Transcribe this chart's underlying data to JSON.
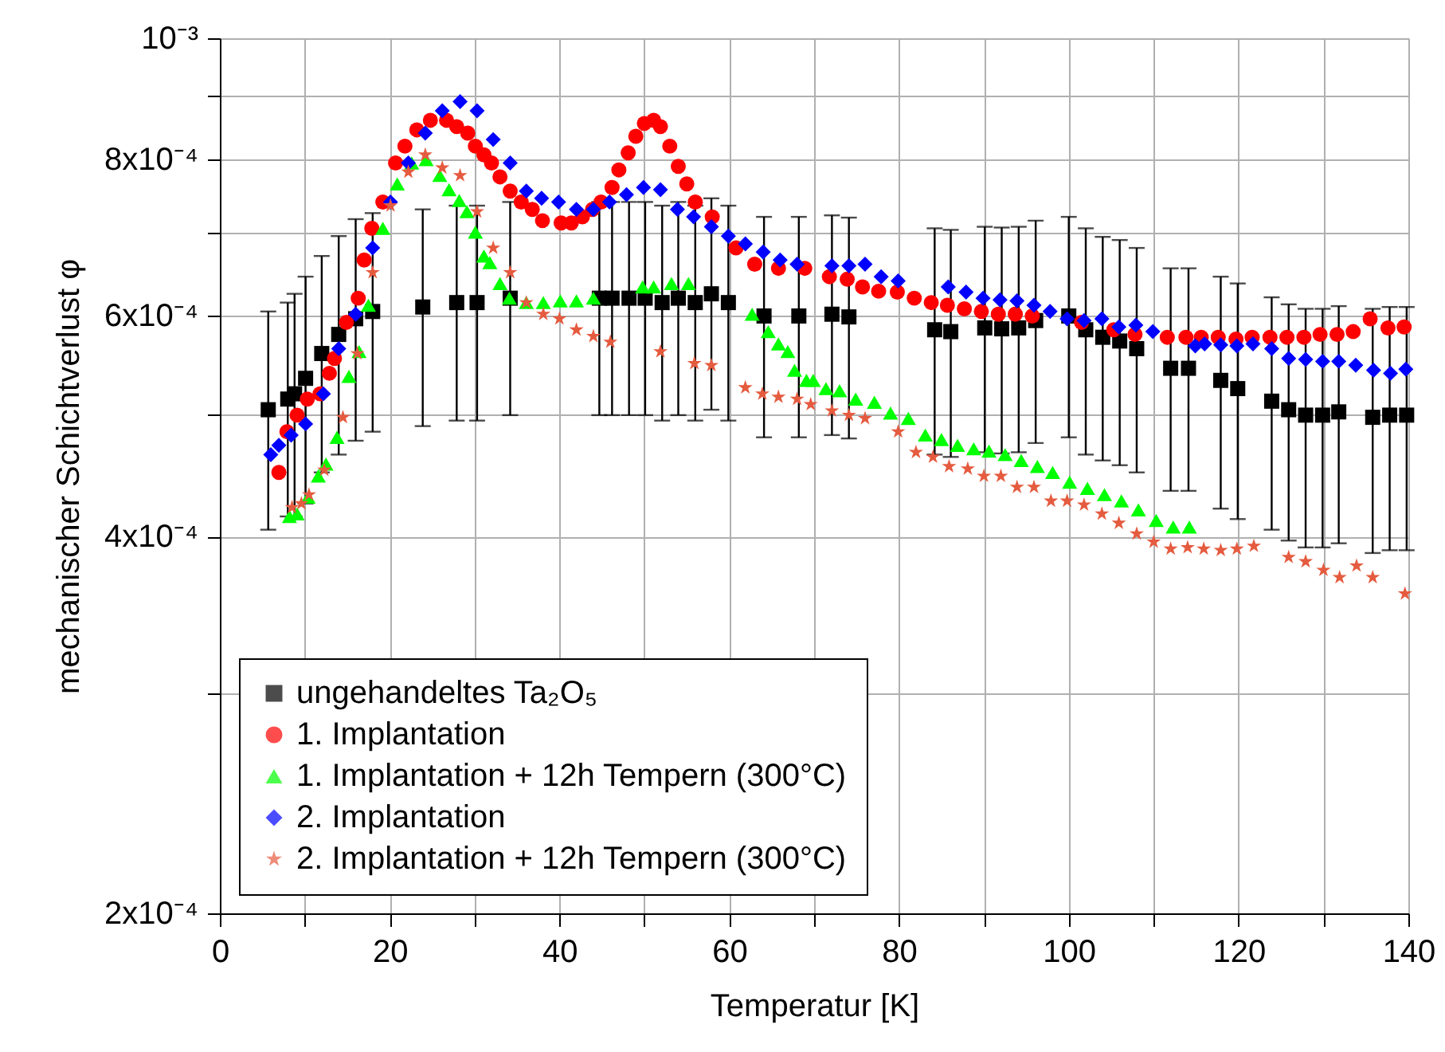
{
  "chart_data": {
    "type": "scatter",
    "xlabel": "Temperatur [K]",
    "ylabel": "mechanischer Schichtverlust φ",
    "xlim": [
      0,
      140
    ],
    "xticks": [
      0,
      {
        "value": 10,
        "label": null
      },
      20,
      {
        "value": 30,
        "label": null
      },
      40,
      {
        "value": 50,
        "label": null
      },
      60,
      {
        "value": 70,
        "label": null
      },
      80,
      {
        "value": 90,
        "label": null
      },
      100,
      {
        "value": 110,
        "label": null
      },
      120,
      {
        "value": 130,
        "label": null
      },
      140
    ],
    "ylim": [
      0.0002,
      0.001
    ],
    "yticks": [
      {
        "value": 0.0002,
        "label": "2x10⁻⁴"
      },
      {
        "value": 0.0003,
        "label": null
      },
      {
        "value": 0.0004,
        "label": "4x10⁻⁴"
      },
      {
        "value": 0.0005,
        "label": null
      },
      {
        "value": 0.0006,
        "label": "6x10⁻⁴"
      },
      {
        "value": 0.0007,
        "label": null
      },
      {
        "value": 0.0008,
        "label": "8x10⁻⁴"
      },
      {
        "value": 0.0009,
        "label": null
      },
      {
        "value": 0.001,
        "label": "10⁻³"
      }
    ],
    "log": "y",
    "grid": true,
    "legend": "bottom left",
    "series": [
      {
        "name": "ungehandeltes Ta₂O₅",
        "color": "#000000",
        "marker": "square",
        "x": [
          5.7,
          8.0,
          8.8,
          10.1,
          12.0,
          14.0,
          16.0,
          18.0,
          23.9,
          27.9,
          30.3,
          34.2,
          44.7,
          46.2,
          48.2,
          50.1,
          52.1,
          54.0,
          56.0,
          57.9,
          59.9,
          64.1,
          68.2,
          72.1,
          74.1,
          84.2,
          86.1,
          90.1,
          92.1,
          94.1,
          96.1,
          100.0,
          102.0,
          104.0,
          106.0,
          108.0,
          112.0,
          114.1,
          117.9,
          119.9,
          123.9,
          125.9,
          127.9,
          129.9,
          131.8,
          135.8,
          137.8,
          139.8
        ],
        "values": [
          0.000505,
          0.000515,
          0.00052,
          0.000535,
          0.00056,
          0.00058,
          0.000597,
          0.000605,
          0.00061,
          0.000615,
          0.000615,
          0.00062,
          0.00062,
          0.00062,
          0.00062,
          0.00062,
          0.000615,
          0.00062,
          0.000615,
          0.000625,
          0.000615,
          0.0006,
          0.0006,
          0.000602,
          0.000599,
          0.000585,
          0.000583,
          0.000587,
          0.000586,
          0.000587,
          0.000595,
          0.0006,
          0.000585,
          0.000577,
          0.000573,
          0.000565,
          0.000545,
          0.000545,
          0.000533,
          0.000525,
          0.000513,
          0.000505,
          0.0005,
          0.0005,
          0.000503,
          0.000498,
          0.0005,
          0.0005
        ],
        "errors": [
          0.0001,
          0.0001,
          0.000105,
          0.00011,
          0.00011,
          0.000115,
          0.00012,
          0.00012,
          0.00012,
          0.00012,
          0.00012,
          0.00012,
          0.00012,
          0.00012,
          0.00012,
          0.00012,
          0.00012,
          0.00012,
          0.00012,
          0.00012,
          0.00012,
          0.00012,
          0.00012,
          0.00012,
          0.00012,
          0.00012,
          0.00012,
          0.00012,
          0.00012,
          0.00012,
          0.00012,
          0.00012,
          0.00012,
          0.000117,
          0.000117,
          0.000115,
          0.00011,
          0.00011,
          0.000112,
          0.000112,
          0.000108,
          0.000108,
          0.000108,
          0.000108,
          0.000108,
          0.00011,
          0.00011,
          0.00011
        ]
      },
      {
        "name": "1. Implantation",
        "color": "#ff0000",
        "marker": "circle",
        "x": [
          6.95,
          7.9,
          9.1,
          10.3,
          11.8,
          12.9,
          13.5,
          14.9,
          16.3,
          17.0,
          17.9,
          19.2,
          20.7,
          21.8,
          23.2,
          24.8,
          26.7,
          27.9,
          29.2,
          30.1,
          31.1,
          32.0,
          33.0,
          34.2,
          35.5,
          36.8,
          38.0,
          40.2,
          41.4,
          42.7,
          43.9,
          44.9,
          46.2,
          47.0,
          48.1,
          49.0,
          50.0,
          51.1,
          51.9,
          53.0,
          54.0,
          55.0,
          56.0,
          58.0,
          60.8,
          63.0,
          65.8,
          68.9,
          71.8,
          73.9,
          75.7,
          77.6,
          79.8,
          81.8,
          83.8,
          85.7,
          87.7,
          89.7,
          91.7,
          93.7,
          95.7,
          101.5,
          105.3,
          107.8,
          111.6,
          113.8,
          115.6,
          117.6,
          119.7,
          121.6,
          123.7,
          125.7,
          127.7,
          129.6,
          131.6,
          133.5,
          135.5,
          137.6,
          139.5
        ],
        "values": [
          0.00045,
          0.000485,
          0.0005,
          0.000515,
          0.00052,
          0.00054,
          0.000555,
          0.000593,
          0.00062,
          0.000665,
          0.000705,
          0.00074,
          0.000795,
          0.00082,
          0.000845,
          0.00086,
          0.00086,
          0.00085,
          0.00084,
          0.00082,
          0.000807,
          0.000795,
          0.000775,
          0.000755,
          0.00074,
          0.00073,
          0.000715,
          0.000712,
          0.000712,
          0.00072,
          0.00073,
          0.00074,
          0.00076,
          0.000785,
          0.00081,
          0.000835,
          0.000855,
          0.00086,
          0.00085,
          0.00082,
          0.00079,
          0.000765,
          0.00074,
          0.00072,
          0.00068,
          0.00066,
          0.000655,
          0.000655,
          0.000645,
          0.000642,
          0.000633,
          0.000628,
          0.000627,
          0.00062,
          0.000615,
          0.000612,
          0.000608,
          0.000605,
          0.000602,
          0.000602,
          0.0006,
          0.000593,
          0.000585,
          0.00058,
          0.000577,
          0.000577,
          0.000577,
          0.000577,
          0.000575,
          0.000577,
          0.000577,
          0.000577,
          0.000577,
          0.00058,
          0.00058,
          0.000583,
          0.000597,
          0.000587,
          0.000588
        ]
      },
      {
        "name": "1. Implantation + 12h Tempern (300°C)",
        "color": "#00ff00",
        "marker": "triangle",
        "x": [
          8.2,
          9.1,
          10.4,
          11.6,
          12.5,
          13.8,
          15.2,
          16.4,
          17.5,
          19.2,
          20.9,
          22.6,
          24.3,
          25.9,
          27.0,
          28.2,
          29.1,
          30.1,
          31.1,
          31.8,
          33.0,
          34.1,
          36.1,
          38.1,
          40.1,
          42.0,
          44.0,
          49.8,
          51.1,
          53.2,
          55.2,
          62.7,
          64.6,
          65.8,
          66.9,
          67.7,
          69.1,
          69.9,
          71.4,
          73.0,
          74.9,
          77.1,
          79.0,
          81.1,
          83.1,
          85.0,
          86.9,
          88.8,
          90.6,
          92.5,
          94.4,
          96.3,
          98.1,
          100.1,
          102.2,
          104.2,
          106.2,
          108.2,
          110.3,
          112.3,
          114.2
        ],
        "values": [
          0.000415,
          0.000417,
          0.00043,
          0.000447,
          0.000457,
          0.00048,
          0.000537,
          0.000562,
          0.000612,
          0.000705,
          0.000765,
          0.000795,
          0.0008,
          0.000777,
          0.000757,
          0.000742,
          0.000727,
          0.0007,
          0.00067,
          0.000662,
          0.000637,
          0.00062,
          0.000615,
          0.000615,
          0.000617,
          0.000617,
          0.00062,
          0.000633,
          0.000633,
          0.000637,
          0.000637,
          0.000602,
          0.000583,
          0.00057,
          0.000562,
          0.000543,
          0.000533,
          0.000533,
          0.000525,
          0.000523,
          0.000515,
          0.000512,
          0.000502,
          0.000497,
          0.000482,
          0.000478,
          0.000473,
          0.00047,
          0.000468,
          0.000465,
          0.00046,
          0.000455,
          0.00045,
          0.000442,
          0.000437,
          0.000432,
          0.000427,
          0.00042,
          0.000412,
          0.000407,
          0.000407
        ]
      },
      {
        "name": "2. Implantation",
        "color": "#0000ff",
        "marker": "diamond",
        "x": [
          6.0,
          6.95,
          8.4,
          10.1,
          12.2,
          14.0,
          16.0,
          18.0,
          20.1,
          22.2,
          24.2,
          26.2,
          28.3,
          30.3,
          32.2,
          34.2,
          36.1,
          37.9,
          39.9,
          42.0,
          44.0,
          45.9,
          47.9,
          49.9,
          51.9,
          53.9,
          55.8,
          57.9,
          59.9,
          61.9,
          64.0,
          66.0,
          68.0,
          72.1,
          74.1,
          76.0,
          77.9,
          79.9,
          85.8,
          87.9,
          89.9,
          91.9,
          93.9,
          95.9,
          97.8,
          99.8,
          101.8,
          103.9,
          105.9,
          107.9,
          109.9,
          114.9,
          116.0,
          117.9,
          119.8,
          121.7,
          123.9,
          125.9,
          127.9,
          129.9,
          131.8,
          133.8,
          135.9,
          137.9,
          139.7
        ],
        "values": [
          0.000465,
          0.000473,
          0.000482,
          0.000492,
          0.00052,
          0.000565,
          0.000602,
          0.00068,
          0.00074,
          0.000795,
          0.00084,
          0.000875,
          0.00089,
          0.000875,
          0.00083,
          0.000795,
          0.000755,
          0.000745,
          0.00074,
          0.00073,
          0.00073,
          0.00074,
          0.00075,
          0.00076,
          0.000757,
          0.00073,
          0.00072,
          0.000707,
          0.000695,
          0.000685,
          0.000675,
          0.000665,
          0.00066,
          0.000658,
          0.000658,
          0.00066,
          0.000645,
          0.00064,
          0.000633,
          0.000627,
          0.00062,
          0.000618,
          0.000617,
          0.000612,
          0.000605,
          0.000597,
          0.000595,
          0.000597,
          0.000588,
          0.00059,
          0.000583,
          0.000568,
          0.00057,
          0.000569,
          0.000568,
          0.00057,
          0.000565,
          0.000555,
          0.000554,
          0.000552,
          0.000552,
          0.000548,
          0.000543,
          0.00054,
          0.000544
        ]
      },
      {
        "name": "2. Implantation + 12h Tempern (300°C)",
        "color": "#e55b3f",
        "marker": "star",
        "x": [
          8.5,
          9.6,
          10.5,
          12.3,
          14.5,
          16.2,
          18.0,
          20.1,
          22.2,
          24.2,
          26.2,
          28.3,
          30.3,
          32.2,
          34.2,
          36.1,
          38.1,
          40.0,
          42.0,
          44.0,
          46.0,
          51.9,
          55.9,
          57.9,
          61.9,
          63.9,
          65.8,
          68.0,
          69.6,
          72.1,
          74.1,
          76.0,
          79.9,
          82.0,
          84.0,
          85.9,
          88.1,
          90.0,
          92.0,
          93.9,
          95.9,
          97.9,
          99.8,
          101.8,
          103.9,
          105.9,
          108.0,
          110.0,
          112.0,
          114.0,
          115.9,
          117.9,
          119.8,
          121.8,
          125.9,
          127.9,
          130.0,
          131.9,
          133.9,
          135.8,
          139.6
        ],
        "values": [
          0.000422,
          0.000425,
          0.000432,
          0.000452,
          0.000498,
          0.00056,
          0.00065,
          0.000735,
          0.000782,
          0.000807,
          0.000788,
          0.000777,
          0.000727,
          0.00068,
          0.00065,
          0.000615,
          0.000602,
          0.000597,
          0.000585,
          0.000578,
          0.000572,
          0.000562,
          0.00055,
          0.000548,
          0.000526,
          0.00052,
          0.000517,
          0.000515,
          0.00051,
          0.000504,
          0.0005,
          0.000497,
          0.000485,
          0.000467,
          0.000463,
          0.000455,
          0.000453,
          0.000447,
          0.000447,
          0.000438,
          0.000438,
          0.000427,
          0.000427,
          0.000424,
          0.000417,
          0.00041,
          0.000402,
          0.000396,
          0.000391,
          0.000392,
          0.000391,
          0.00039,
          0.000391,
          0.000393,
          0.000385,
          0.000382,
          0.000376,
          0.000371,
          0.000379,
          0.000371,
          0.00036
        ]
      }
    ]
  }
}
